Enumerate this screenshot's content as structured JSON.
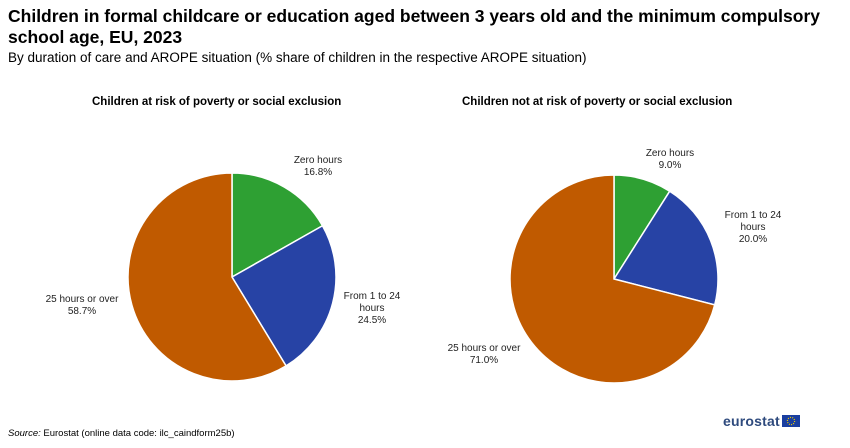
{
  "title": "Children in formal childcare or education aged between 3 years old and the minimum compulsory school age, EU, 2023",
  "subtitle": "By duration of care and AROPE situation (% share of children in the respective AROPE situation)",
  "colors": {
    "zero": "#2ea033",
    "mid": "#2743a5",
    "high": "#c05a00"
  },
  "chart_data": [
    {
      "type": "pie",
      "title": "Children at risk of poverty or social exclusion",
      "categories": [
        "Zero hours",
        "From 1 to 24 hours",
        "25 hours or over"
      ],
      "values": [
        16.8,
        24.5,
        58.7
      ],
      "value_labels": [
        "16.8%",
        "24.5%",
        "58.7%"
      ]
    },
    {
      "type": "pie",
      "title": "Children not at risk of poverty or social exclusion",
      "categories": [
        "Zero hours",
        "From 1 to 24 hours",
        "25 hours or over"
      ],
      "values": [
        9.0,
        20.0,
        71.0
      ],
      "value_labels": [
        "9.0%",
        "20.0%",
        "71.0%"
      ]
    }
  ],
  "footer": {
    "source_label": "Source:",
    "source_text": "Eurostat (online data code: ilc_caindform25b)"
  },
  "logo": {
    "text": "eurostat",
    "flag_icon": "eu-flag-icon"
  }
}
